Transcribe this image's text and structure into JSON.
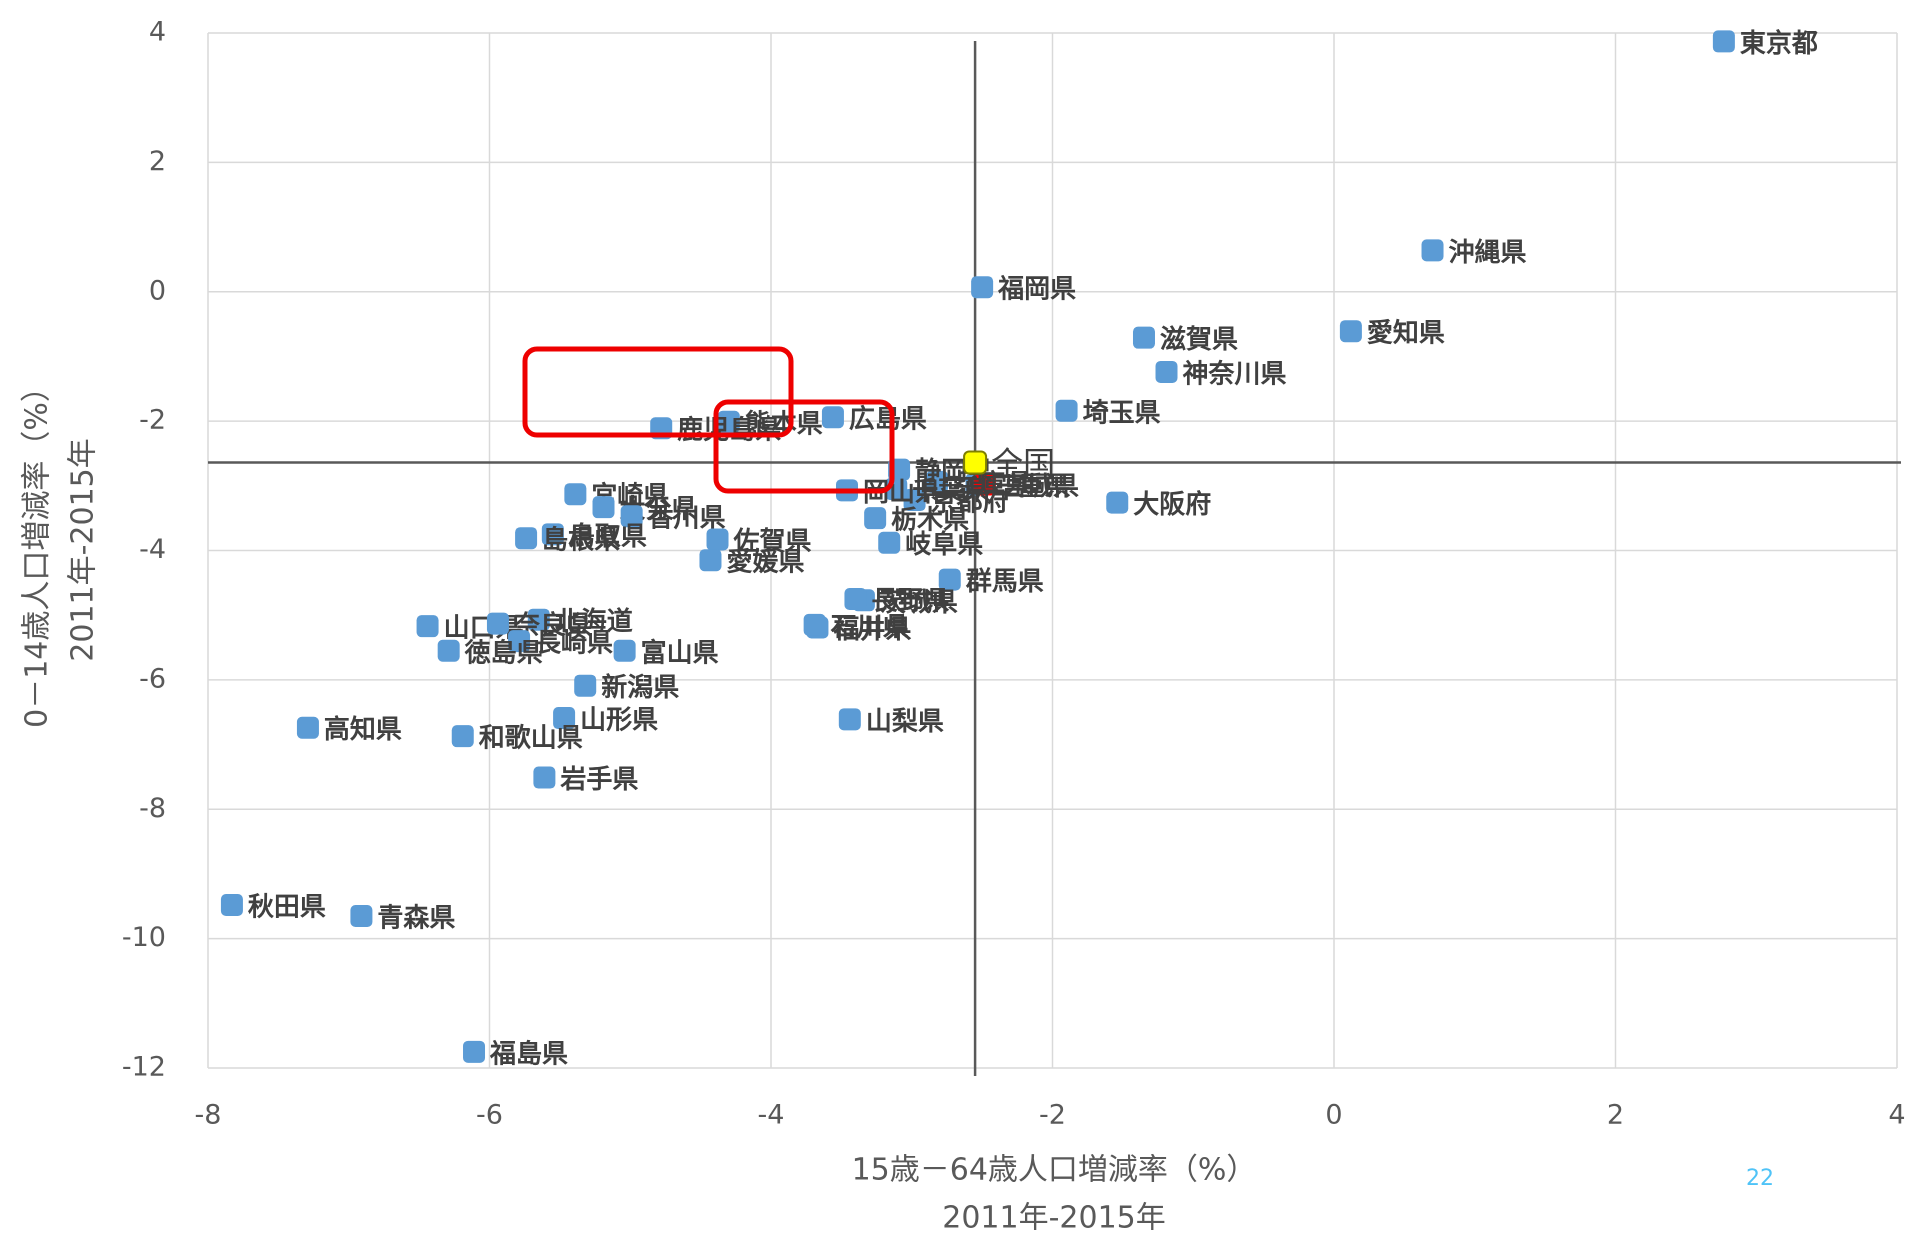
{
  "chart_data": {
    "type": "scatter",
    "x_label": [
      "15歳－64歳人口増減率（%）",
      "2011年-2015年"
    ],
    "y_label": [
      "0－14歳人口増減率（%）",
      "2011年-2015年"
    ],
    "page_number": "22",
    "labels": [
      "東京都",
      "沖縄県",
      "愛知県",
      "福岡県",
      "滋賀県",
      "神奈川県",
      "埼玉県",
      "三重県",
      "宮城県",
      "大阪府",
      "兵庫県",
      "京都府",
      "静岡県",
      "千葉県",
      "岡山県",
      "広島県",
      "熊本県",
      "鹿児島県",
      "宮崎県",
      "大分県",
      "香川県",
      "鳥取県",
      "島根県",
      "佐賀県",
      "愛媛県",
      "栃木県",
      "岐阜県",
      "群馬県",
      "茨城県",
      "長野県",
      "福井県",
      "石川県",
      "北海道",
      "山口県",
      "奈良県",
      "長崎県",
      "徳島県",
      "富山県",
      "新潟県",
      "山形県",
      "山梨県",
      "高知県",
      "和歌山県",
      "岩手県",
      "秋田県",
      "青森県",
      "福島県",
      "全国"
    ],
    "x": [
      2.77,
      0.7,
      0.12,
      -2.5,
      -1.35,
      -1.19,
      -1.9,
      -2.54,
      -2.48,
      -1.54,
      -2.82,
      -2.98,
      -3.09,
      -3.11,
      -3.46,
      -3.56,
      -4.3,
      -4.78,
      -5.39,
      -5.19,
      -4.99,
      -5.55,
      -5.74,
      -4.38,
      -4.43,
      -3.26,
      -3.16,
      -2.73,
      -3.34,
      -3.4,
      -3.67,
      -3.69,
      -5.65,
      -6.44,
      -5.94,
      -5.79,
      -6.29,
      -5.04,
      -5.32,
      -5.47,
      -3.44,
      -7.29,
      -6.19,
      -5.61,
      -7.83,
      -6.91,
      -6.11,
      -2.55
    ],
    "values": [
      3.87,
      0.64,
      -0.61,
      0.07,
      -0.71,
      -1.24,
      -1.84,
      -2.98,
      -2.98,
      -3.26,
      -2.94,
      -3.22,
      -2.75,
      -3.05,
      -3.07,
      -1.94,
      -2.01,
      -2.11,
      -3.13,
      -3.33,
      -3.47,
      -3.75,
      -3.81,
      -3.83,
      -4.15,
      -3.5,
      -3.88,
      -4.45,
      -4.77,
      -4.75,
      -5.19,
      -5.15,
      -5.07,
      -5.17,
      -5.13,
      -5.4,
      -5.55,
      -5.55,
      -6.09,
      -6.59,
      -6.61,
      -6.74,
      -6.87,
      -7.51,
      -9.48,
      -9.65,
      -11.75,
      -2.64
    ],
    "colors": [
      "#5b9bd5",
      "#5b9bd5",
      "#5b9bd5",
      "#5b9bd5",
      "#5b9bd5",
      "#5b9bd5",
      "#5b9bd5",
      "#5b9bd5",
      "#ff0000",
      "#5b9bd5",
      "#5b9bd5",
      "#5b9bd5",
      "#5b9bd5",
      "#5b9bd5",
      "#5b9bd5",
      "#5b9bd5",
      "#5b9bd5",
      "#5b9bd5",
      "#5b9bd5",
      "#5b9bd5",
      "#5b9bd5",
      "#5b9bd5",
      "#5b9bd5",
      "#5b9bd5",
      "#5b9bd5",
      "#5b9bd5",
      "#5b9bd5",
      "#5b9bd5",
      "#5b9bd5",
      "#5b9bd5",
      "#5b9bd5",
      "#5b9bd5",
      "#5b9bd5",
      "#5b9bd5",
      "#5b9bd5",
      "#5b9bd5",
      "#5b9bd5",
      "#5b9bd5",
      "#5b9bd5",
      "#5b9bd5",
      "#5b9bd5",
      "#5b9bd5",
      "#5b9bd5",
      "#5b9bd5",
      "#5b9bd5",
      "#5b9bd5",
      "#5b9bd5",
      "#ffff00"
    ],
    "xlim": [
      -8,
      4
    ],
    "xticks": [
      -8,
      -6,
      -4,
      -2,
      0,
      2,
      4
    ],
    "ylim": [
      -12,
      4
    ],
    "yticks": [
      -12,
      -10,
      -8,
      -6,
      -4,
      -2,
      0,
      2,
      4
    ],
    "grid": true
  }
}
